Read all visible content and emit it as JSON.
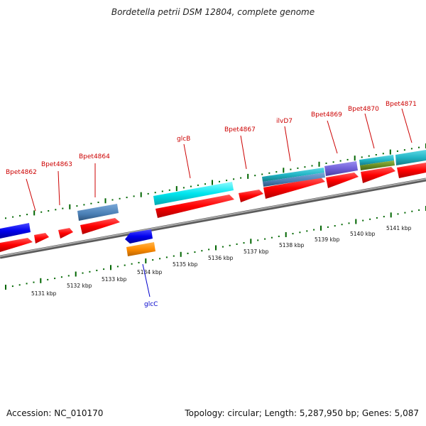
{
  "title": "Bordetella petrii DSM 12804, complete genome",
  "accession": "Accession: NC_010170",
  "summary": "Topology: circular; Length: 5,287,950 bp; Genes: 5,087",
  "kbp_labels": [
    "5131 kbp",
    "5132 kbp",
    "5133 kbp",
    "5134 kbp",
    "5135 kbp",
    "5136 kbp",
    "5137 kbp",
    "5138 kbp",
    "5139 kbp",
    "5140 kbp",
    "5141 kbp"
  ],
  "genes_upper": [
    "Bpet4862",
    "Bpet4863",
    "Bpet4864",
    "glcB",
    "Bpet4867",
    "ilvD7",
    "Bpet4869",
    "Bpet4870",
    "Bpet4871"
  ],
  "genes_lower": [
    "glcC"
  ],
  "colors": {
    "gene": "#ff0000",
    "cds_blue": "#0000ee",
    "cds_steelblue": "#4a7fb5",
    "cds_cyan": "#00e5ee",
    "cds_teal": "#22b5c5",
    "cds_purple": "#7060d8",
    "cds_orange": "#ff8c00",
    "cds_olive": "#6b8e23",
    "backbone": "#888888",
    "tick": "#006600",
    "label_forward": "#cc0000",
    "label_reverse": "#0000cc"
  }
}
